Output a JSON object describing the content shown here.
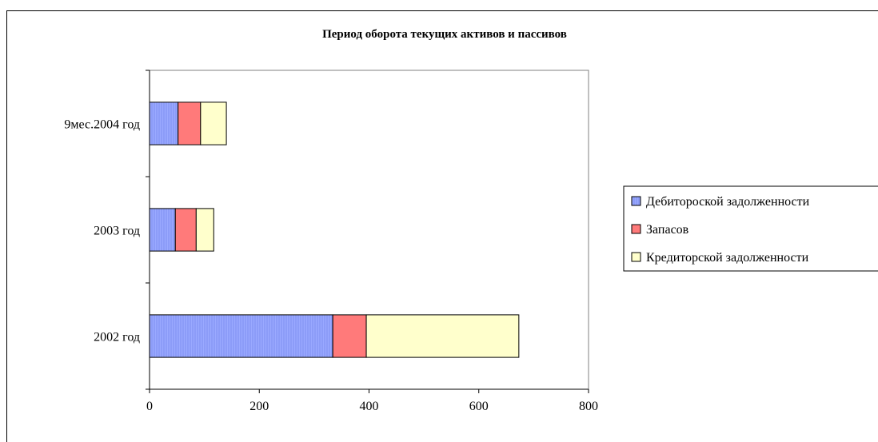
{
  "chart_data": {
    "type": "bar",
    "orientation": "horizontal",
    "stacked": true,
    "title": "Период оборота текущих активов и пассивов",
    "categories": [
      "2002 год",
      "2003 год",
      "9мес.2004 год"
    ],
    "series": [
      {
        "name": "Дебитороской задолженности",
        "values": [
          334,
          47,
          52
        ],
        "color": "#9aa9ff"
      },
      {
        "name": "Запасов",
        "values": [
          61,
          38,
          41
        ],
        "color": "#ff7a7a"
      },
      {
        "name": "Кредиторской задолженности",
        "values": [
          278,
          32,
          47
        ],
        "color": "#ffffcc"
      }
    ],
    "xlim": [
      0,
      800
    ],
    "xticks": [
      0,
      200,
      400,
      600,
      800
    ],
    "xlabel": "",
    "ylabel": "",
    "grid": false,
    "legend_position": "right"
  }
}
